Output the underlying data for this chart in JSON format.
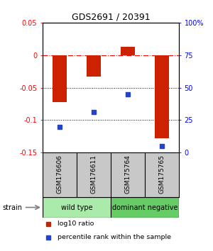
{
  "title": "GDS2691 / 20391",
  "samples": [
    "GSM176606",
    "GSM176611",
    "GSM175764",
    "GSM175765"
  ],
  "log10_ratio": [
    -0.072,
    -0.033,
    0.013,
    -0.128
  ],
  "percentile_rank": [
    20,
    31,
    45,
    5
  ],
  "bar_color": "#cc2200",
  "dot_color": "#2244cc",
  "ylim_left": [
    -0.15,
    0.05
  ],
  "ylim_right": [
    0,
    100
  ],
  "yticks_left": [
    0.05,
    0.0,
    -0.05,
    -0.1,
    -0.15
  ],
  "yticks_right": [
    100,
    75,
    50,
    25,
    0
  ],
  "ytick_labels_left": [
    "0.05",
    "0",
    "-0.05",
    "-0.1",
    "-0.15"
  ],
  "ytick_labels_right": [
    "100%",
    "75",
    "50",
    "25",
    "0"
  ],
  "dotted_lines": [
    -0.05,
    -0.1
  ],
  "groups": [
    {
      "label": "wild type",
      "indices": [
        0,
        1
      ],
      "color": "#aaeaaa"
    },
    {
      "label": "dominant negative",
      "indices": [
        2,
        3
      ],
      "color": "#66cc66"
    }
  ],
  "group_label": "strain",
  "legend_items": [
    {
      "label": "log10 ratio",
      "color": "#cc2200"
    },
    {
      "label": "percentile rank within the sample",
      "color": "#2244cc"
    }
  ],
  "bar_width": 0.4,
  "sample_box_color": "#c8c8c8",
  "figsize": [
    3.0,
    3.54
  ],
  "dpi": 100
}
